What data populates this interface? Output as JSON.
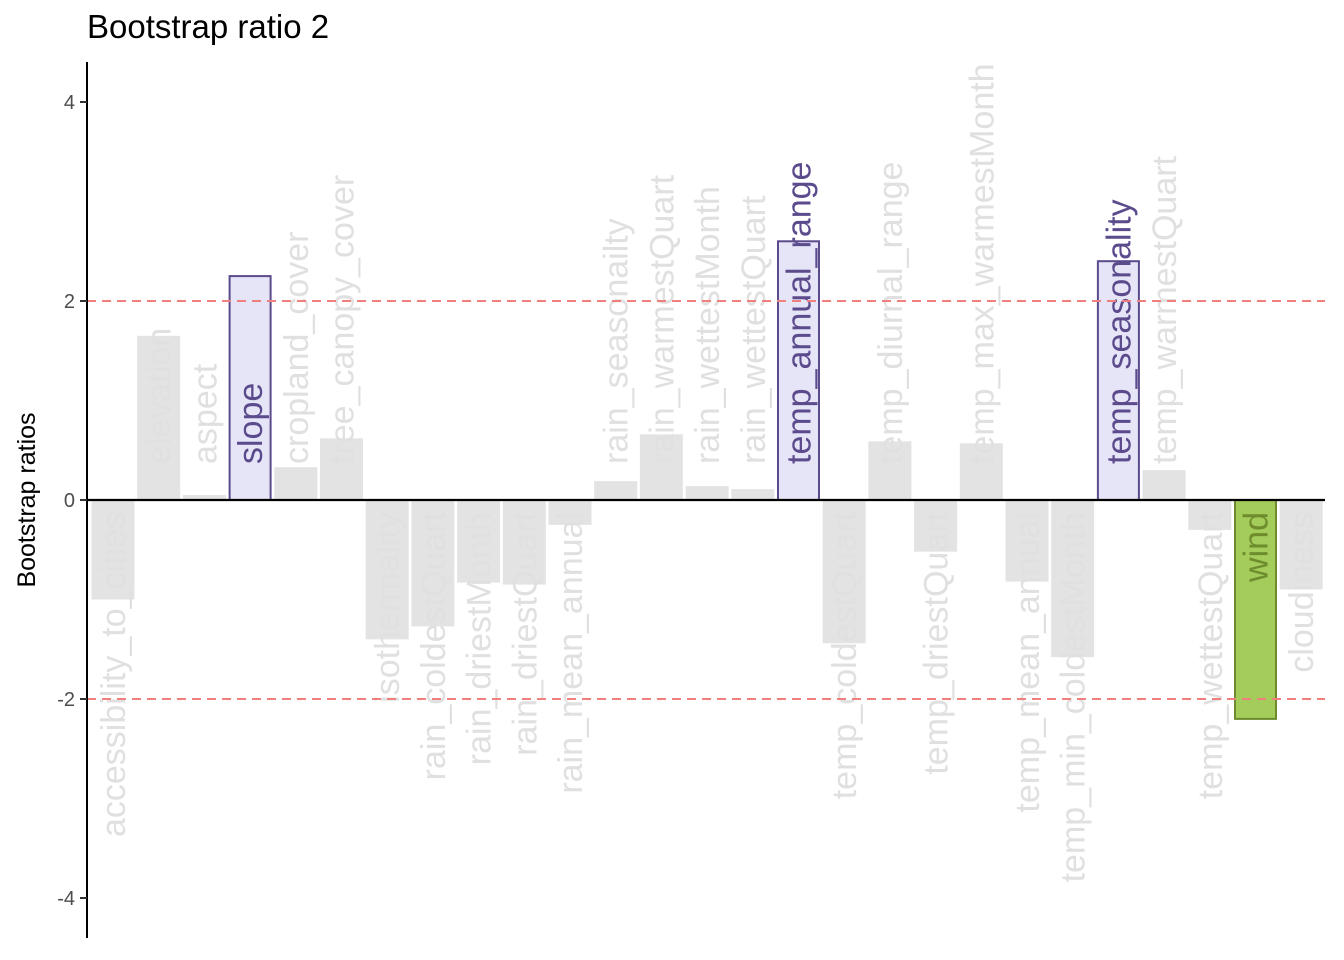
{
  "chart_data": {
    "type": "bar",
    "title": "Bootstrap ratio 2",
    "xlabel": "",
    "ylabel": "Bootstrap ratios",
    "ylim": [
      -4.4,
      4.4
    ],
    "yticks": [
      -4,
      -2,
      0,
      2,
      4
    ],
    "threshold_lines": [
      2,
      -2
    ],
    "categories": [
      "accessibility_to_cities",
      "elevation",
      "aspect",
      "slope",
      "cropland_cover",
      "tree_canopy_cover",
      "isothermality",
      "rain_coldestQuart",
      "rain_driestMonth",
      "rain_driestQuart",
      "rain_mean_annual",
      "rain_seasonailty",
      "rain_warmestQuart",
      "rain_wettestMonth",
      "rain_wettestQuart",
      "temp_annual_range",
      "temp_coldestQuart",
      "temp_diurnal_range",
      "temp_driestQuart",
      "temp_max_warmestMonth",
      "temp_mean_annual",
      "temp_min_coldestMonth",
      "temp_seasonality",
      "temp_warmestQuart",
      "temp_wettestQuart",
      "wind",
      "cloudiness"
    ],
    "values": [
      -1.0,
      1.65,
      0.05,
      2.25,
      0.33,
      0.62,
      -1.4,
      -1.27,
      -0.83,
      -0.85,
      -0.25,
      0.19,
      0.66,
      0.14,
      0.11,
      2.6,
      -1.44,
      0.59,
      -0.52,
      0.57,
      -0.82,
      -1.58,
      2.4,
      0.3,
      -0.3,
      -2.2,
      -0.9
    ],
    "highlighted": [
      "slope",
      "temp_annual_range",
      "temp_seasonality",
      "wind"
    ],
    "grid": false,
    "legend": "none"
  },
  "colors": {
    "neutral_bar": "#e3e3e3",
    "neutral_label": "#e0e0e0",
    "positive_fill": "#e5e5f7",
    "positive_stroke": "#5b4a8c",
    "positive_label": "#5b4a8c",
    "negative_fill": "#a3cc5a",
    "negative_stroke": "#6e8c2d",
    "negative_label": "#6e8c2d",
    "threshold_line": "#f08080",
    "axis": "#000000",
    "tick_label": "#4d4d4d"
  }
}
